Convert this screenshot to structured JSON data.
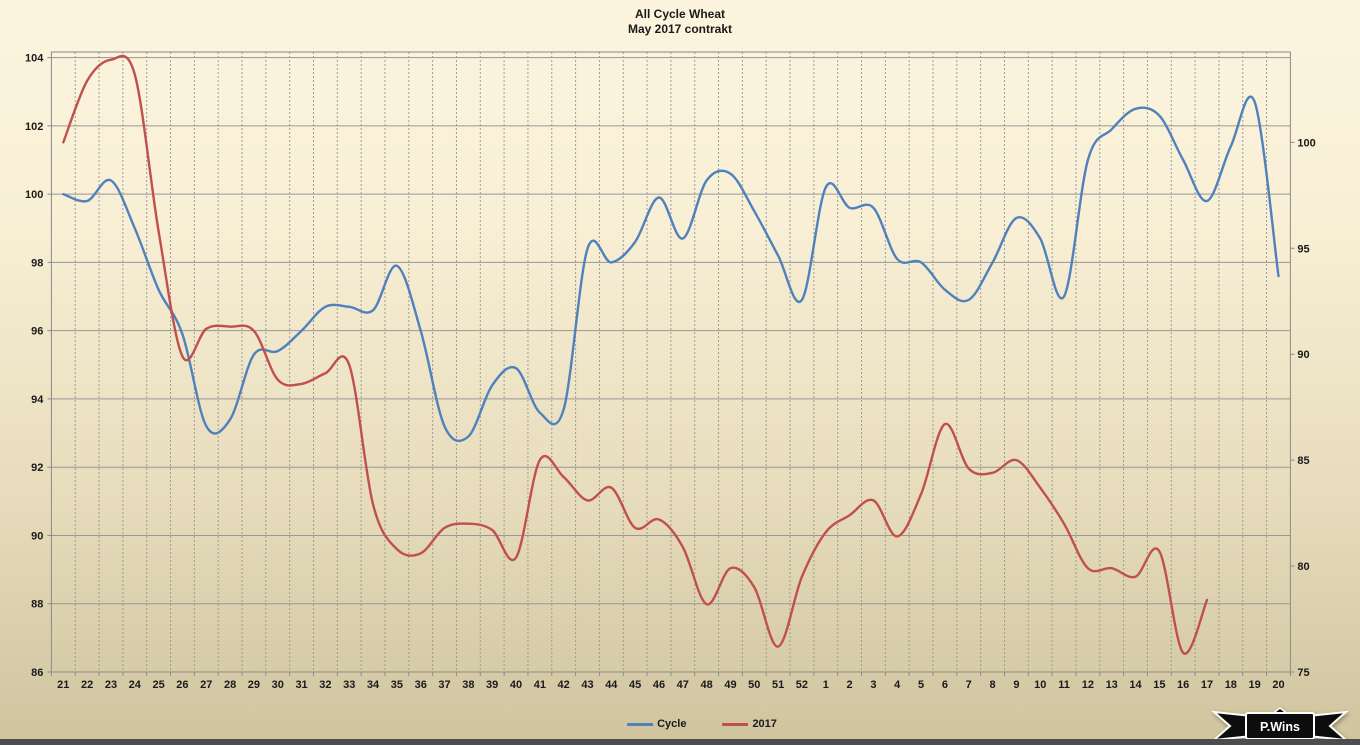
{
  "title": {
    "line1": "All Cycle Wheat",
    "line2": "May 2017 contrakt"
  },
  "watermark": {
    "text": "P.Wins"
  },
  "colors": {
    "background_top": "#FCF4DE",
    "background_bottom": "#CFC49E",
    "grid": "#979797",
    "grid_dashed": "#9B9B9B",
    "axis": "#8A8A8A",
    "text": "#1A1A1A",
    "series_cycle": "#4F81BD",
    "series_2017": "#C0504D",
    "bottom_bar": "#4D4D4D",
    "ribbon_black": "#0D0D0D",
    "ribbon_text": "#FFFFFF"
  },
  "chart_data": {
    "type": "line",
    "title": "All Cycle Wheat",
    "subtitle": "May 2017 contrakt",
    "smooth": true,
    "grid": {
      "horizontal": true,
      "vertical": "dashed"
    },
    "legend_position": "bottom",
    "categories": [
      "21",
      "22",
      "23",
      "24",
      "25",
      "26",
      "27",
      "28",
      "29",
      "30",
      "31",
      "32",
      "33",
      "34",
      "35",
      "36",
      "37",
      "38",
      "39",
      "40",
      "41",
      "42",
      "43",
      "44",
      "45",
      "46",
      "47",
      "48",
      "49",
      "50",
      "51",
      "52",
      "1",
      "2",
      "3",
      "4",
      "5",
      "6",
      "7",
      "8",
      "9",
      "10",
      "11",
      "12",
      "13",
      "14",
      "15",
      "16",
      "17",
      "18",
      "19",
      "20"
    ],
    "left_axis": {
      "min": 86,
      "max": 104,
      "step": 2,
      "ticks": [
        86,
        88,
        90,
        92,
        94,
        96,
        98,
        100,
        102,
        104
      ]
    },
    "right_axis": {
      "min": 75,
      "max": 104,
      "step": 5,
      "ticks": [
        75,
        80,
        85,
        90,
        95,
        100
      ]
    },
    "series": [
      {
        "name": "Cycle",
        "axis": "left",
        "color": "#4F81BD",
        "values": [
          100.0,
          99.8,
          100.4,
          99.0,
          97.2,
          95.9,
          93.2,
          93.4,
          95.3,
          95.4,
          96.0,
          96.7,
          96.7,
          96.6,
          97.9,
          96.0,
          93.2,
          92.9,
          94.4,
          94.9,
          93.6,
          93.7,
          98.4,
          98.0,
          98.6,
          99.9,
          98.7,
          100.4,
          100.6,
          99.5,
          98.2,
          96.9,
          100.2,
          99.6,
          99.6,
          98.1,
          98.0,
          97.2,
          96.9,
          98.0,
          99.3,
          98.7,
          97.0,
          101.0,
          101.9,
          102.5,
          102.3,
          101.0,
          99.8,
          101.4,
          102.7,
          97.6
        ]
      },
      {
        "name": "2017",
        "axis": "right",
        "color": "#C0504D",
        "values": [
          100.0,
          102.9,
          103.9,
          103.2,
          95.8,
          89.9,
          91.2,
          91.3,
          91.1,
          88.8,
          88.6,
          89.1,
          89.5,
          82.9,
          80.8,
          80.6,
          81.8,
          82.0,
          81.7,
          80.4,
          85.0,
          84.2,
          83.1,
          83.7,
          81.8,
          82.2,
          80.9,
          78.2,
          79.9,
          79.0,
          76.2,
          79.5,
          81.6,
          82.4,
          83.1,
          81.4,
          83.4,
          86.7,
          84.6,
          84.4,
          85.0,
          83.7,
          82.0,
          79.9,
          79.9,
          79.5,
          80.7,
          75.9,
          78.4,
          null,
          null,
          null
        ]
      }
    ]
  }
}
